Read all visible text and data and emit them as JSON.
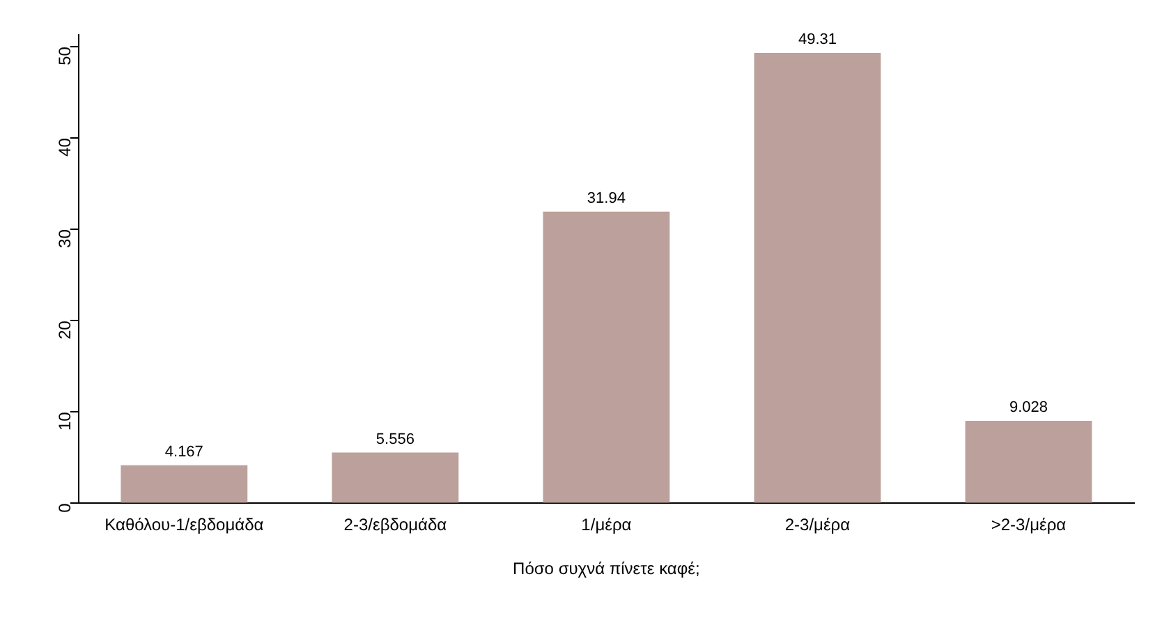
{
  "chart_data": {
    "type": "bar",
    "xlabel": "Πόσο συχνά πίνετε καφέ;",
    "categories": [
      "Καθόλου-1/εβδομάδα",
      "2-3/εβδομάδα",
      "1/μέρα",
      "2-3/μέρα",
      ">2-3/μέρα"
    ],
    "values": [
      4.167,
      5.556,
      31.94,
      49.31,
      9.028
    ],
    "color": "#bca09b",
    "ylim": [
      0,
      51.3
    ],
    "yticks": [
      0,
      10,
      20,
      30,
      40,
      50
    ],
    "grid": false,
    "legend": false,
    "data_labels": true
  }
}
